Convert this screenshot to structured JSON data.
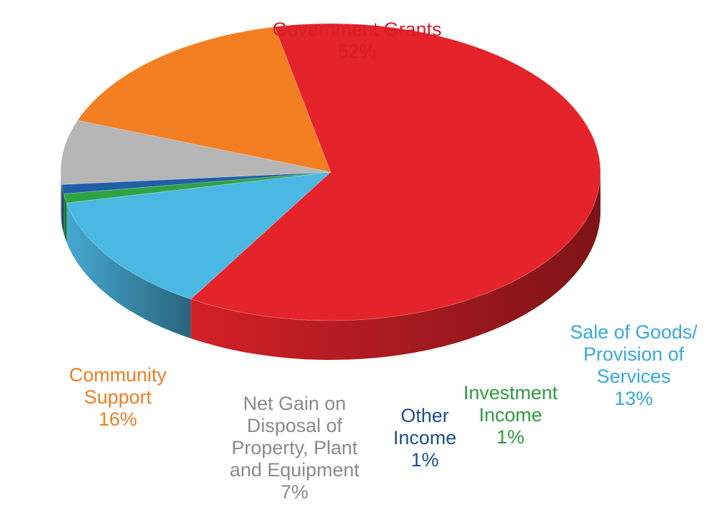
{
  "chart_data": {
    "type": "pie",
    "style": "3d",
    "slices": [
      {
        "key": "gov",
        "label_lines": [
          "Government Grants"
        ],
        "value": 62,
        "value_label": "62%",
        "color": "#e5232a",
        "label_color": "#d42028"
      },
      {
        "key": "sale",
        "label_lines": [
          "Sale of Goods/",
          "Provision of",
          "Services"
        ],
        "value": 13,
        "value_label": "13%",
        "color": "#4bb8e3",
        "label_color": "#36a9dd"
      },
      {
        "key": "inv",
        "label_lines": [
          "Investment",
          "Income"
        ],
        "value": 1,
        "value_label": "1%",
        "color": "#2ea344",
        "label_color": "#2e9b3b"
      },
      {
        "key": "other",
        "label_lines": [
          "Other",
          "Income"
        ],
        "value": 1,
        "value_label": "1%",
        "color": "#1f5fa6",
        "label_color": "#1c4f93"
      },
      {
        "key": "net",
        "label_lines": [
          "Net Gain on",
          "Disposal of",
          "Property, Plant",
          "and Equipment"
        ],
        "value": 7,
        "value_label": "7%",
        "color": "#b6b6b6",
        "label_color": "#8a8a8a"
      },
      {
        "key": "comm",
        "label_lines": [
          "Community",
          "Support"
        ],
        "value": 16,
        "value_label": "16%",
        "color": "#f47f22",
        "label_color": "#ef7d22"
      }
    ]
  }
}
